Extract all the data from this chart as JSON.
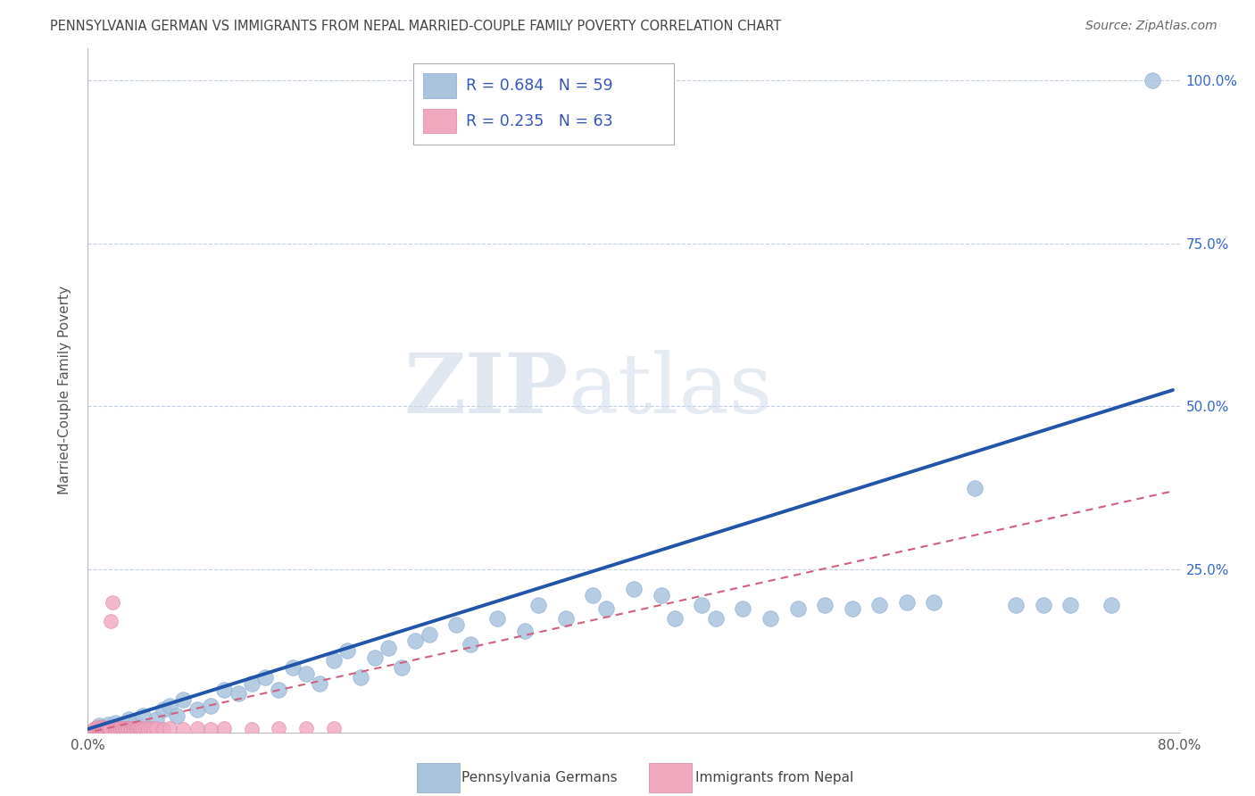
{
  "title": "PENNSYLVANIA GERMAN VS IMMIGRANTS FROM NEPAL MARRIED-COUPLE FAMILY POVERTY CORRELATION CHART",
  "source": "Source: ZipAtlas.com",
  "ylabel": "Married-Couple Family Poverty",
  "xlim": [
    0.0,
    0.8
  ],
  "ylim": [
    0.0,
    1.05
  ],
  "R_blue": 0.684,
  "N_blue": 59,
  "R_pink": 0.235,
  "N_pink": 63,
  "legend_label_blue": "Pennsylvania Germans",
  "legend_label_pink": "Immigrants from Nepal",
  "blue_color": "#aac4de",
  "blue_line_color": "#2255aa",
  "pink_color": "#f0a8be",
  "pink_line_color": "#d06080",
  "watermark_zip": "ZIP",
  "watermark_atlas": "atlas",
  "background_color": "#ffffff",
  "grid_color": "#c0d0e0",
  "title_color": "#444444",
  "legend_text_color": "#3355bb",
  "blue_scatter": [
    [
      0.008,
      0.01
    ],
    [
      0.01,
      0.005
    ],
    [
      0.012,
      0.008
    ],
    [
      0.015,
      0.012
    ],
    [
      0.02,
      0.015
    ],
    [
      0.025,
      0.01
    ],
    [
      0.03,
      0.02
    ],
    [
      0.035,
      0.015
    ],
    [
      0.04,
      0.025
    ],
    [
      0.05,
      0.02
    ],
    [
      0.055,
      0.035
    ],
    [
      0.06,
      0.04
    ],
    [
      0.065,
      0.025
    ],
    [
      0.07,
      0.05
    ],
    [
      0.08,
      0.035
    ],
    [
      0.09,
      0.04
    ],
    [
      0.1,
      0.065
    ],
    [
      0.11,
      0.06
    ],
    [
      0.12,
      0.075
    ],
    [
      0.13,
      0.085
    ],
    [
      0.14,
      0.065
    ],
    [
      0.15,
      0.1
    ],
    [
      0.16,
      0.09
    ],
    [
      0.17,
      0.075
    ],
    [
      0.18,
      0.11
    ],
    [
      0.19,
      0.125
    ],
    [
      0.2,
      0.085
    ],
    [
      0.21,
      0.115
    ],
    [
      0.22,
      0.13
    ],
    [
      0.23,
      0.1
    ],
    [
      0.24,
      0.14
    ],
    [
      0.25,
      0.15
    ],
    [
      0.27,
      0.165
    ],
    [
      0.28,
      0.135
    ],
    [
      0.3,
      0.175
    ],
    [
      0.32,
      0.155
    ],
    [
      0.33,
      0.195
    ],
    [
      0.35,
      0.175
    ],
    [
      0.37,
      0.21
    ],
    [
      0.38,
      0.19
    ],
    [
      0.4,
      0.22
    ],
    [
      0.42,
      0.21
    ],
    [
      0.43,
      0.175
    ],
    [
      0.45,
      0.195
    ],
    [
      0.46,
      0.175
    ],
    [
      0.48,
      0.19
    ],
    [
      0.5,
      0.175
    ],
    [
      0.52,
      0.19
    ],
    [
      0.54,
      0.195
    ],
    [
      0.56,
      0.19
    ],
    [
      0.58,
      0.195
    ],
    [
      0.6,
      0.2
    ],
    [
      0.62,
      0.2
    ],
    [
      0.65,
      0.375
    ],
    [
      0.68,
      0.195
    ],
    [
      0.7,
      0.195
    ],
    [
      0.72,
      0.195
    ],
    [
      0.75,
      0.195
    ],
    [
      0.78,
      1.0
    ]
  ],
  "pink_scatter": [
    [
      0.004,
      0.005
    ],
    [
      0.005,
      0.006
    ],
    [
      0.006,
      0.005
    ],
    [
      0.007,
      0.006
    ],
    [
      0.007,
      0.008
    ],
    [
      0.008,
      0.005
    ],
    [
      0.008,
      0.007
    ],
    [
      0.009,
      0.005
    ],
    [
      0.009,
      0.008
    ],
    [
      0.01,
      0.006
    ],
    [
      0.01,
      0.005
    ],
    [
      0.011,
      0.005
    ],
    [
      0.011,
      0.008
    ],
    [
      0.012,
      0.005
    ],
    [
      0.012,
      0.007
    ],
    [
      0.013,
      0.006
    ],
    [
      0.013,
      0.005
    ],
    [
      0.014,
      0.007
    ],
    [
      0.014,
      0.005
    ],
    [
      0.015,
      0.006
    ],
    [
      0.015,
      0.008
    ],
    [
      0.016,
      0.005
    ],
    [
      0.016,
      0.007
    ],
    [
      0.017,
      0.17
    ],
    [
      0.018,
      0.2
    ],
    [
      0.019,
      0.006
    ],
    [
      0.02,
      0.007
    ],
    [
      0.02,
      0.005
    ],
    [
      0.021,
      0.006
    ],
    [
      0.022,
      0.005
    ],
    [
      0.023,
      0.007
    ],
    [
      0.024,
      0.005
    ],
    [
      0.025,
      0.006
    ],
    [
      0.026,
      0.005
    ],
    [
      0.027,
      0.007
    ],
    [
      0.028,
      0.005
    ],
    [
      0.029,
      0.006
    ],
    [
      0.03,
      0.005
    ],
    [
      0.031,
      0.007
    ],
    [
      0.032,
      0.005
    ],
    [
      0.033,
      0.006
    ],
    [
      0.034,
      0.005
    ],
    [
      0.035,
      0.007
    ],
    [
      0.036,
      0.005
    ],
    [
      0.037,
      0.006
    ],
    [
      0.038,
      0.005
    ],
    [
      0.039,
      0.007
    ],
    [
      0.04,
      0.005
    ],
    [
      0.042,
      0.006
    ],
    [
      0.044,
      0.005
    ],
    [
      0.046,
      0.007
    ],
    [
      0.048,
      0.005
    ],
    [
      0.05,
      0.006
    ],
    [
      0.055,
      0.005
    ],
    [
      0.06,
      0.007
    ],
    [
      0.07,
      0.005
    ],
    [
      0.08,
      0.006
    ],
    [
      0.09,
      0.005
    ],
    [
      0.1,
      0.006
    ],
    [
      0.12,
      0.005
    ],
    [
      0.14,
      0.006
    ],
    [
      0.16,
      0.007
    ],
    [
      0.18,
      0.006
    ]
  ],
  "blue_line_x": [
    0.0,
    0.795
  ],
  "blue_line_y": [
    0.005,
    0.525
  ],
  "pink_line_x": [
    0.005,
    0.795
  ],
  "pink_line_y": [
    0.002,
    0.37
  ]
}
